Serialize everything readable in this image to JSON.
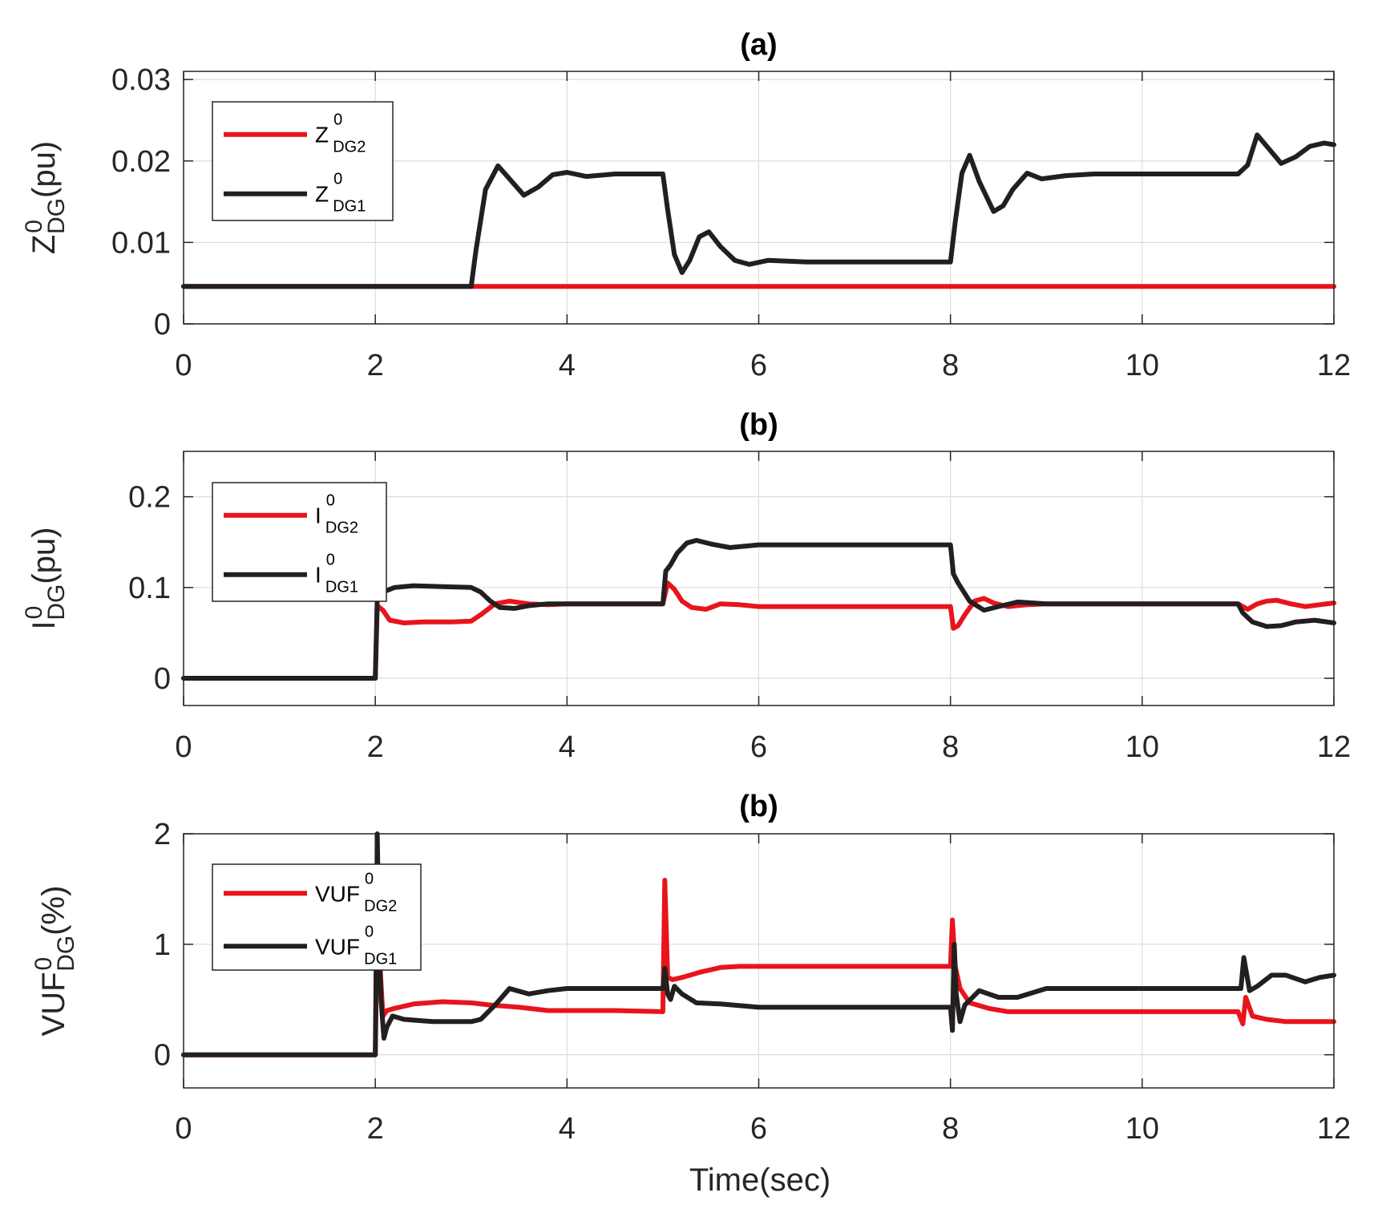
{
  "colors": {
    "dg2": "#e8141c",
    "dg1": "#231f20"
  },
  "xlabel": "Time(sec)",
  "chart_data": [
    {
      "type": "line",
      "title": "(a)",
      "ylabel": {
        "main": "Z",
        "sup": "0",
        "sub": "DG",
        "unit": "(pu)"
      },
      "xlim": [
        0,
        12
      ],
      "ylim": [
        0,
        0.031
      ],
      "xticks": [
        0,
        2,
        4,
        6,
        8,
        10,
        12
      ],
      "xtick_labels": [
        "0",
        "2",
        "4",
        "6",
        "8",
        "10",
        "12"
      ],
      "yticks": [
        0,
        0.01,
        0.02,
        0.03
      ],
      "ytick_labels": [
        "0",
        "0.01",
        "0.02",
        "0.03"
      ],
      "series": [
        {
          "name": "Z DG2",
          "legend": {
            "main": "Z",
            "sup": "0",
            "sub": "DG2"
          },
          "color_key": "dg2",
          "x": [
            0,
            12
          ],
          "y": [
            0.0046,
            0.0046
          ]
        },
        {
          "name": "Z DG1",
          "legend": {
            "main": "Z",
            "sup": "0",
            "sub": "DG1"
          },
          "color_key": "dg1",
          "x": [
            0,
            3.0,
            3.05,
            3.15,
            3.28,
            3.4,
            3.55,
            3.7,
            3.85,
            4.0,
            4.2,
            4.5,
            4.8,
            5.0,
            5.05,
            5.12,
            5.2,
            5.28,
            5.38,
            5.48,
            5.6,
            5.75,
            5.9,
            6.1,
            6.5,
            7.0,
            7.5,
            8.0,
            8.05,
            8.12,
            8.2,
            8.3,
            8.45,
            8.55,
            8.65,
            8.8,
            8.95,
            9.2,
            9.5,
            10.0,
            10.5,
            11.0,
            11.1,
            11.2,
            11.3,
            11.45,
            11.6,
            11.75,
            11.9,
            12.0
          ],
          "y": [
            0.0046,
            0.0046,
            0.009,
            0.0165,
            0.0194,
            0.0178,
            0.0158,
            0.0168,
            0.0183,
            0.0186,
            0.0181,
            0.0184,
            0.0184,
            0.0184,
            0.014,
            0.0085,
            0.0063,
            0.0078,
            0.0107,
            0.0113,
            0.0095,
            0.0078,
            0.0073,
            0.0078,
            0.0076,
            0.0076,
            0.0076,
            0.0076,
            0.0125,
            0.0185,
            0.0207,
            0.0175,
            0.0138,
            0.0145,
            0.0165,
            0.0185,
            0.0178,
            0.0182,
            0.0184,
            0.0184,
            0.0184,
            0.0184,
            0.0195,
            0.0232,
            0.0218,
            0.0197,
            0.0205,
            0.0218,
            0.0222,
            0.022
          ]
        }
      ]
    },
    {
      "type": "line",
      "title": "(b)",
      "ylabel": {
        "main": "I",
        "sup": "0",
        "sub": "DG",
        "unit": "(pu)"
      },
      "xlim": [
        0,
        12
      ],
      "ylim": [
        -0.03,
        0.25
      ],
      "xticks": [
        0,
        2,
        4,
        6,
        8,
        10,
        12
      ],
      "xtick_labels": [
        "0",
        "2",
        "4",
        "6",
        "8",
        "10",
        "12"
      ],
      "yticks": [
        0,
        0.1,
        0.2
      ],
      "ytick_labels": [
        "0",
        "0.1",
        "0.2"
      ],
      "series": [
        {
          "name": "I DG2",
          "legend": {
            "main": "I",
            "sup": "0",
            "sub": "DG2"
          },
          "color_key": "dg2",
          "x": [
            0,
            2.0,
            2.02,
            2.08,
            2.15,
            2.3,
            2.5,
            2.8,
            3.0,
            3.1,
            3.25,
            3.4,
            3.6,
            3.8,
            4.0,
            4.5,
            5.0,
            5.05,
            5.12,
            5.2,
            5.3,
            5.45,
            5.6,
            5.8,
            6.0,
            6.5,
            7.0,
            7.5,
            8.0,
            8.03,
            8.08,
            8.15,
            8.25,
            8.35,
            8.45,
            8.6,
            8.8,
            9.0,
            9.5,
            10.0,
            10.5,
            11.0,
            11.1,
            11.2,
            11.3,
            11.4,
            11.55,
            11.7,
            11.85,
            12.0
          ],
          "y": [
            0,
            0,
            0.08,
            0.075,
            0.064,
            0.061,
            0.062,
            0.062,
            0.063,
            0.07,
            0.082,
            0.085,
            0.082,
            0.081,
            0.082,
            0.082,
            0.082,
            0.105,
            0.098,
            0.085,
            0.078,
            0.076,
            0.082,
            0.081,
            0.079,
            0.079,
            0.079,
            0.079,
            0.079,
            0.055,
            0.058,
            0.07,
            0.085,
            0.088,
            0.083,
            0.079,
            0.081,
            0.082,
            0.082,
            0.082,
            0.082,
            0.082,
            0.076,
            0.082,
            0.085,
            0.086,
            0.082,
            0.079,
            0.081,
            0.083
          ]
        },
        {
          "name": "I DG1",
          "legend": {
            "main": "I",
            "sup": "0",
            "sub": "DG1"
          },
          "color_key": "dg1",
          "x": [
            0,
            2.0,
            2.02,
            2.08,
            2.2,
            2.4,
            2.7,
            3.0,
            3.1,
            3.2,
            3.3,
            3.45,
            3.6,
            3.8,
            4.0,
            4.5,
            5.0,
            5.03,
            5.08,
            5.15,
            5.25,
            5.35,
            5.5,
            5.7,
            6.0,
            6.5,
            7.0,
            7.5,
            8.0,
            8.03,
            8.08,
            8.2,
            8.35,
            8.5,
            8.7,
            9.0,
            9.5,
            10.0,
            10.5,
            11.0,
            11.05,
            11.15,
            11.3,
            11.45,
            11.6,
            11.8,
            12.0
          ],
          "y": [
            0,
            0,
            0.088,
            0.095,
            0.1,
            0.102,
            0.101,
            0.1,
            0.095,
            0.085,
            0.078,
            0.077,
            0.08,
            0.082,
            0.082,
            0.082,
            0.082,
            0.118,
            0.125,
            0.138,
            0.149,
            0.152,
            0.148,
            0.144,
            0.147,
            0.147,
            0.147,
            0.147,
            0.147,
            0.115,
            0.105,
            0.085,
            0.075,
            0.079,
            0.084,
            0.082,
            0.082,
            0.082,
            0.082,
            0.082,
            0.072,
            0.062,
            0.057,
            0.058,
            0.062,
            0.064,
            0.061
          ]
        }
      ]
    },
    {
      "type": "line",
      "title": "(b)",
      "ylabel": {
        "main": "VUF",
        "sup": "0",
        "sub": "DG",
        "unit": "(%)"
      },
      "xlim": [
        0,
        12
      ],
      "ylim": [
        -0.3,
        2.0
      ],
      "xticks": [
        0,
        2,
        4,
        6,
        8,
        10,
        12
      ],
      "xtick_labels": [
        "0",
        "2",
        "4",
        "6",
        "8",
        "10",
        "12"
      ],
      "yticks": [
        0,
        1,
        2
      ],
      "ytick_labels": [
        "0",
        "1",
        "2"
      ],
      "series": [
        {
          "name": "VUF DG2",
          "legend": {
            "main": "VUF",
            "sup": "0",
            "sub": "DG2"
          },
          "color_key": "dg2",
          "x": [
            0,
            2.0,
            2.02,
            2.05,
            2.08,
            2.12,
            2.2,
            2.4,
            2.7,
            3.0,
            3.2,
            3.5,
            3.8,
            4.0,
            4.5,
            5.0,
            5.02,
            5.05,
            5.1,
            5.2,
            5.4,
            5.6,
            5.8,
            6.0,
            6.5,
            7.0,
            7.5,
            8.0,
            8.02,
            8.05,
            8.1,
            8.2,
            8.4,
            8.6,
            9.0,
            9.5,
            10.0,
            10.5,
            11.0,
            11.05,
            11.08,
            11.15,
            11.3,
            11.5,
            11.7,
            12.0
          ],
          "y": [
            0,
            0,
            1.2,
            0.8,
            0.35,
            0.4,
            0.42,
            0.46,
            0.48,
            0.47,
            0.45,
            0.43,
            0.4,
            0.4,
            0.4,
            0.39,
            1.58,
            0.7,
            0.68,
            0.7,
            0.75,
            0.79,
            0.8,
            0.8,
            0.8,
            0.8,
            0.8,
            0.8,
            1.22,
            0.8,
            0.6,
            0.47,
            0.42,
            0.39,
            0.39,
            0.39,
            0.39,
            0.39,
            0.39,
            0.28,
            0.52,
            0.35,
            0.32,
            0.3,
            0.3,
            0.3
          ]
        },
        {
          "name": "VUF DG1",
          "legend": {
            "main": "VUF",
            "sup": "0",
            "sub": "DG1"
          },
          "color_key": "dg1",
          "x": [
            0,
            2.0,
            2.02,
            2.04,
            2.06,
            2.09,
            2.12,
            2.18,
            2.3,
            2.6,
            2.9,
            3.0,
            3.1,
            3.25,
            3.4,
            3.6,
            3.8,
            4.0,
            4.5,
            5.0,
            5.02,
            5.05,
            5.08,
            5.12,
            5.2,
            5.35,
            5.6,
            6.0,
            6.5,
            7.0,
            7.5,
            8.0,
            8.02,
            8.04,
            8.06,
            8.1,
            8.15,
            8.3,
            8.5,
            8.7,
            9.0,
            9.5,
            10.0,
            10.5,
            11.0,
            11.03,
            11.06,
            11.12,
            11.2,
            11.35,
            11.5,
            11.7,
            11.85,
            12.0
          ],
          "y": [
            0,
            0,
            2.0,
            1.0,
            0.5,
            0.15,
            0.25,
            0.35,
            0.32,
            0.3,
            0.3,
            0.3,
            0.32,
            0.45,
            0.6,
            0.55,
            0.58,
            0.6,
            0.6,
            0.6,
            0.78,
            0.55,
            0.5,
            0.62,
            0.55,
            0.47,
            0.46,
            0.43,
            0.43,
            0.43,
            0.43,
            0.43,
            0.22,
            1.0,
            0.55,
            0.3,
            0.45,
            0.58,
            0.52,
            0.52,
            0.6,
            0.6,
            0.6,
            0.6,
            0.6,
            0.6,
            0.88,
            0.58,
            0.62,
            0.72,
            0.72,
            0.66,
            0.7,
            0.72
          ]
        }
      ]
    }
  ]
}
